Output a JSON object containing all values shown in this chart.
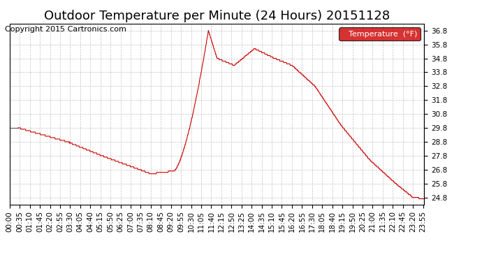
{
  "title": "Outdoor Temperature per Minute (24 Hours) 20151128",
  "copyright_text": "Copyright 2015 Cartronics.com",
  "legend_label": "Temperature  (°F)",
  "legend_bg": "#cc0000",
  "legend_text_color": "#ffffff",
  "line_color_main": "#cc0000",
  "line_color_start": "#555555",
  "background_color": "#ffffff",
  "grid_color": "#aaaaaa",
  "ylim": [
    24.3,
    37.3
  ],
  "yticks": [
    24.8,
    25.8,
    26.8,
    27.8,
    28.8,
    29.8,
    30.8,
    31.8,
    32.8,
    33.8,
    34.8,
    35.8,
    36.8
  ],
  "title_fontsize": 13,
  "tick_fontsize": 7.5,
  "copyright_fontsize": 8
}
